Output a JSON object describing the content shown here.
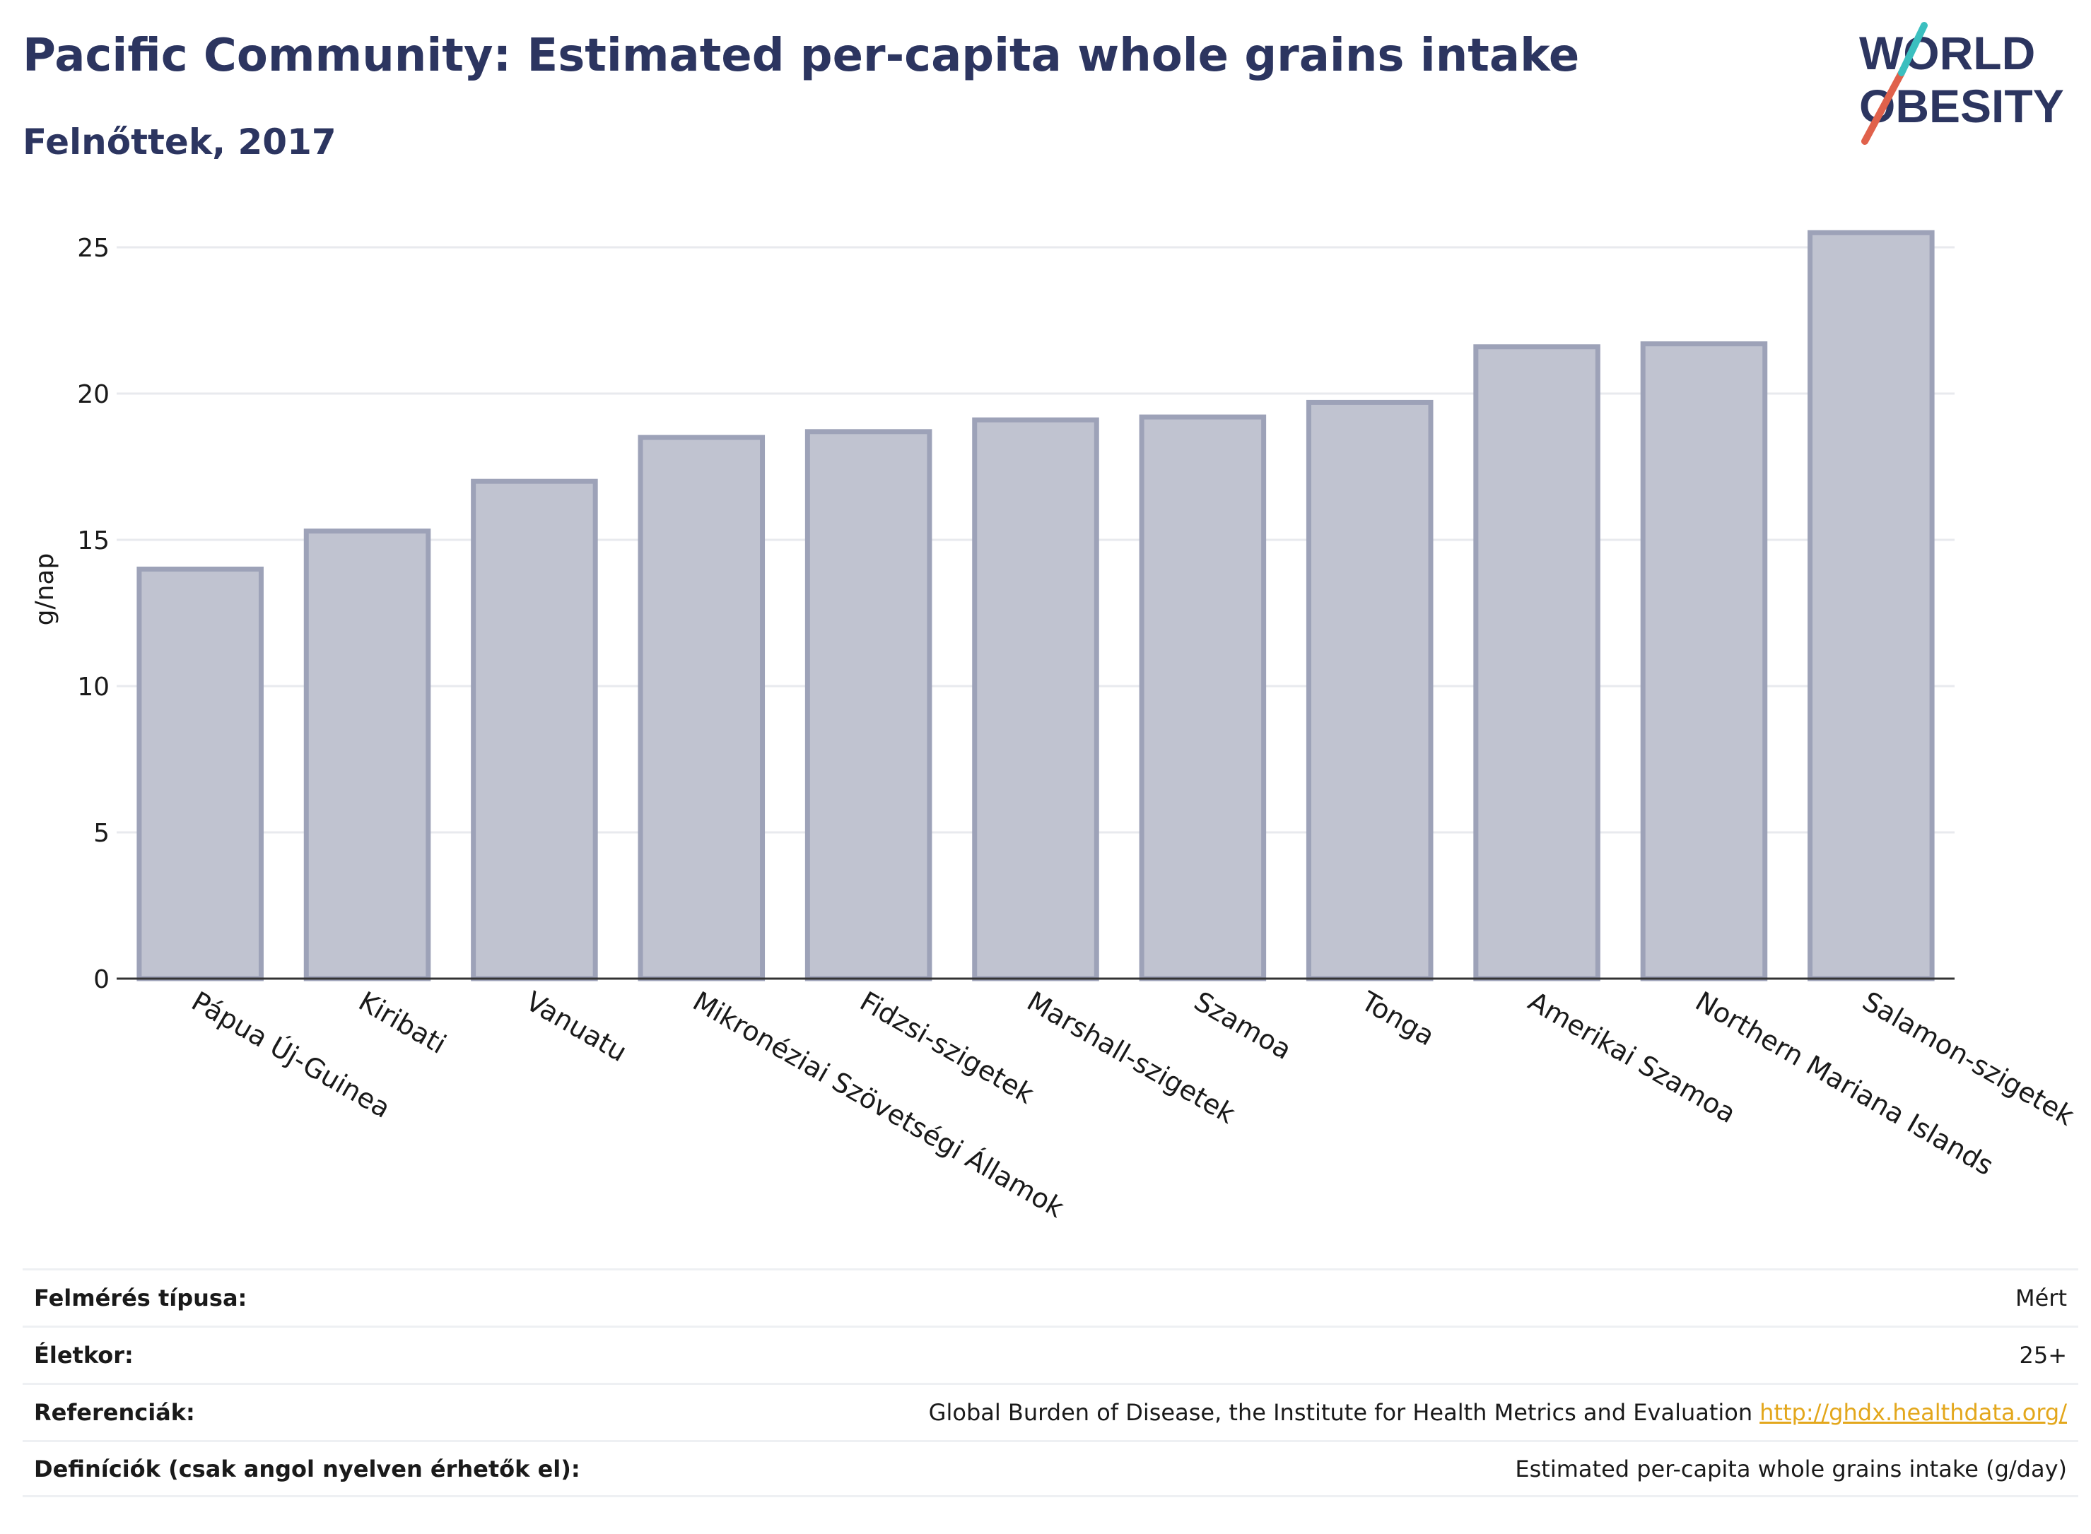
{
  "header": {
    "title": "Pacific Community: Estimated per-capita whole grains intake",
    "subtitle": "Felnőttek, 2017"
  },
  "logo": {
    "line1": "WORLD",
    "line2": "OBESITY",
    "text_color": "#2c3560",
    "slash_colors": [
      "#e0614b",
      "#3bbfbf"
    ]
  },
  "chart_data": {
    "type": "bar",
    "categories": [
      "Pápua Új-Guinea",
      "Kiribati",
      "Vanuatu",
      "Mikronéziai Szövetségi Államok",
      "Fidzsi-szigetek",
      "Marshall-szigetek",
      "Szamoa",
      "Tonga",
      "Amerikai Szamoa",
      "Northern Mariana Islands",
      "Salamon-szigetek"
    ],
    "values": [
      14.0,
      15.3,
      17.0,
      18.5,
      18.7,
      19.1,
      19.2,
      19.7,
      21.6,
      21.7,
      25.5
    ],
    "ylabel": "g/nap",
    "xlabel": "",
    "ylim": [
      0,
      26
    ],
    "yticks": [
      0,
      5,
      10,
      15,
      20,
      25
    ],
    "grid": true,
    "bar_fill": "#c0c3d0",
    "bar_stroke": "#9da2b8"
  },
  "footer": {
    "rows": [
      {
        "label": "Felmérés típusa:",
        "value": "Mért",
        "link": ""
      },
      {
        "label": "Életkor:",
        "value": "25+",
        "link": ""
      },
      {
        "label": "Referenciák:",
        "value": "Global Burden of Disease, the Institute for Health Metrics and Evaluation",
        "link": "http://ghdx.healthdata.org/"
      },
      {
        "label": "Definíciók (csak angol nyelven érhetők el):",
        "value": "Estimated per-capita whole grains intake (g/day)",
        "link": ""
      }
    ]
  }
}
